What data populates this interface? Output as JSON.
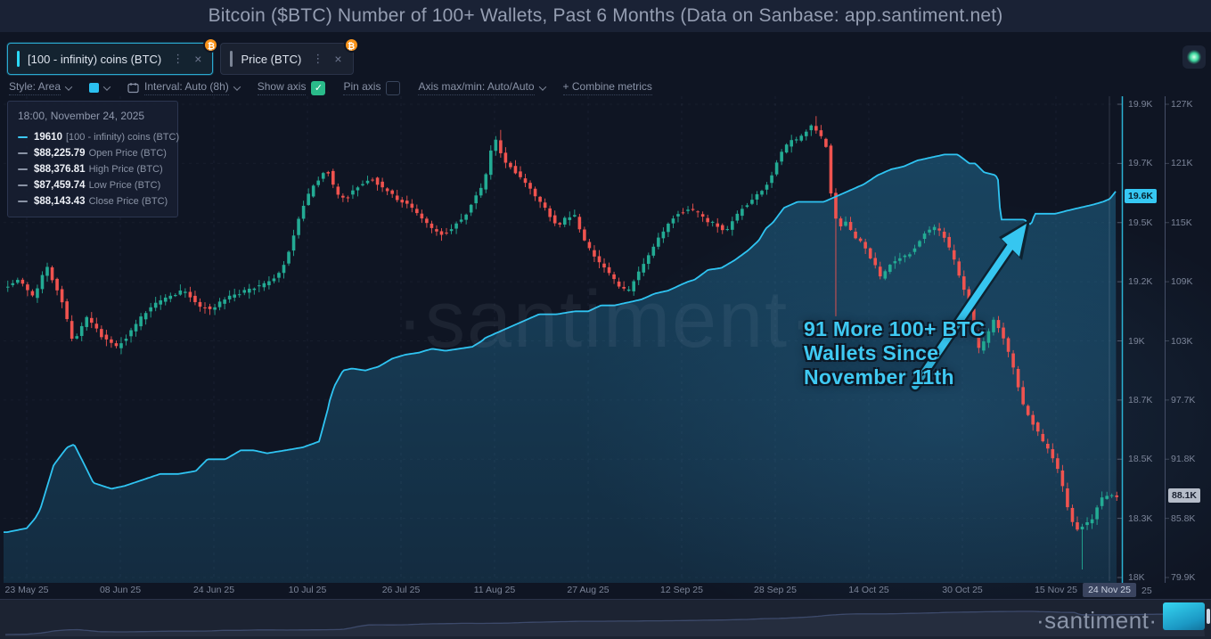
{
  "header": {
    "title": "Bitcoin ($BTC) Number of 100+ Wallets, Past 6 Months (Data on Sanbase: app.santiment.net)"
  },
  "metric_chips": [
    {
      "label": "[100 - infinity) coins (BTC)",
      "active": true,
      "badge": "₿",
      "accent": "#2bd9f7"
    },
    {
      "label": "Price (BTC)",
      "active": false,
      "badge": "₿",
      "accent": "#7c8596"
    }
  ],
  "toolbar": {
    "style_label": "Style: Area",
    "swatch_color": "#2bc0f0",
    "interval_label": "Interval: Auto (8h)",
    "show_axis_label": "Show axis",
    "show_axis_checked": true,
    "check_glyph": "✓",
    "pin_axis_label": "Pin axis",
    "pin_axis_checked": false,
    "axis_maxmin_label": "Axis max/min: Auto/Auto",
    "combine_label": "+  Combine metrics"
  },
  "tooltip": {
    "timestamp": "18:00, November 24, 2025",
    "rows": [
      {
        "color": "#3cc8f5",
        "value": "19610",
        "label": "[100 - infinity) coins (BTC)"
      },
      {
        "color": "#8a93a5",
        "value": "$88,225.79",
        "label": "Open Price (BTC)"
      },
      {
        "color": "#8a93a5",
        "value": "$88,376.81",
        "label": "High Price (BTC)"
      },
      {
        "color": "#8a93a5",
        "value": "$87,459.74",
        "label": "Low Price (BTC)"
      },
      {
        "color": "#8a93a5",
        "value": "$88,143.43",
        "label": "Close Price (BTC)"
      }
    ]
  },
  "annotation": {
    "lines": [
      "91 More 100+ BTC",
      "Wallets Since",
      "November 11th"
    ],
    "color": "#3fc9f2",
    "arrow_color": "#36c6f0"
  },
  "watermark": {
    "text": "·santiment·"
  },
  "logo": {
    "text": "·santiment·"
  },
  "chart_data": {
    "type": "mixed",
    "title": "Bitcoin ($BTC) Number of 100+ Wallets, Past 6 Months",
    "x_axis": {
      "labels": [
        "23 May 25",
        "08 Jun 25",
        "24 Jun 25",
        "10 Jul 25",
        "26 Jul 25",
        "11 Aug 25",
        "27 Aug 25",
        "12 Sep 25",
        "28 Sep 25",
        "14 Oct 25",
        "30 Oct 25",
        "15 Nov 25"
      ],
      "days_per_tick": 16,
      "crosshair_label": "24 Nov 25",
      "extra_label": "25",
      "grid": true
    },
    "y_axis_wallets": {
      "labels": [
        "19.9K",
        "19.7K",
        "19.5K",
        "19.2K",
        "19K",
        "18.7K",
        "18.5K",
        "18.3K",
        "18K"
      ],
      "values": [
        19.9,
        19.7,
        19.5,
        19.2,
        19.0,
        18.7,
        18.5,
        18.3,
        18.0
      ],
      "current_badge": "19.6K",
      "current_value": 19.61,
      "axis_color": "#2bb3d4"
    },
    "y_axis_price": {
      "labels": [
        "127K",
        "121K",
        "115K",
        "109K",
        "103K",
        "97.7K",
        "91.8K",
        "85.8K",
        "79.9K"
      ],
      "values": [
        127,
        121,
        115,
        109,
        103,
        97.7,
        91.8,
        85.8,
        79.9
      ],
      "current_badge": "88.1K",
      "current_value": 88.1,
      "axis_color": "#454f68"
    },
    "series": [
      {
        "name": "[100 - infinity) coins (BTC)",
        "type": "area",
        "axis": "wallets",
        "line_color": "#2fc4f2",
        "fill_color": "42,160,215",
        "points": [
          [
            -3.4,
            18.23
          ],
          [
            0,
            18.25
          ],
          [
            2.3,
            18.33
          ],
          [
            4.6,
            18.48
          ],
          [
            6.9,
            18.54
          ],
          [
            8.1,
            18.55
          ],
          [
            9.9,
            18.48
          ],
          [
            11.4,
            18.42
          ],
          [
            14.5,
            18.4
          ],
          [
            16.8,
            18.41
          ],
          [
            19.8,
            18.43
          ],
          [
            22.8,
            18.45
          ],
          [
            25.9,
            18.45
          ],
          [
            28.9,
            18.46
          ],
          [
            30.9,
            18.5
          ],
          [
            34,
            18.5
          ],
          [
            36.6,
            18.53
          ],
          [
            38.8,
            18.53
          ],
          [
            41.1,
            18.52
          ],
          [
            44.2,
            18.53
          ],
          [
            47.2,
            18.54
          ],
          [
            50,
            18.56
          ],
          [
            51.5,
            18.67
          ],
          [
            52.6,
            18.77
          ],
          [
            54.1,
            18.85
          ],
          [
            55.6,
            18.86
          ],
          [
            57.9,
            18.85
          ],
          [
            60.2,
            18.87
          ],
          [
            62.5,
            18.91
          ],
          [
            64.7,
            18.93
          ],
          [
            67,
            18.94
          ],
          [
            69.3,
            18.96
          ],
          [
            71.6,
            18.95
          ],
          [
            73.9,
            18.96
          ],
          [
            76.2,
            18.97
          ],
          [
            78.4,
            19.01
          ],
          [
            80.7,
            19.03
          ],
          [
            83,
            19.05
          ],
          [
            85.3,
            19.07
          ],
          [
            87.6,
            19.09
          ],
          [
            90.6,
            19.09
          ],
          [
            93.7,
            19.1
          ],
          [
            96,
            19.1
          ],
          [
            98.2,
            19.12
          ],
          [
            100.5,
            19.12
          ],
          [
            102.8,
            19.13
          ],
          [
            105.1,
            19.14
          ],
          [
            107.4,
            19.16
          ],
          [
            109.7,
            19.17
          ],
          [
            111.9,
            19.19
          ],
          [
            114.2,
            19.21
          ],
          [
            116.5,
            19.26
          ],
          [
            118.8,
            19.27
          ],
          [
            121.1,
            19.31
          ],
          [
            123.4,
            19.36
          ],
          [
            125.2,
            19.41
          ],
          [
            126.4,
            19.47
          ],
          [
            127.6,
            19.5
          ],
          [
            129.5,
            19.55
          ],
          [
            131.8,
            19.57
          ],
          [
            134,
            19.57
          ],
          [
            136.3,
            19.57
          ],
          [
            138.6,
            19.59
          ],
          [
            140.9,
            19.61
          ],
          [
            143.2,
            19.63
          ],
          [
            145.5,
            19.66
          ],
          [
            147.8,
            19.68
          ],
          [
            150,
            19.69
          ],
          [
            152.3,
            19.71
          ],
          [
            154.6,
            19.72
          ],
          [
            156.9,
            19.73
          ],
          [
            159.2,
            19.73
          ],
          [
            161.2,
            19.7
          ],
          [
            162.2,
            19.7
          ],
          [
            163.7,
            19.67
          ],
          [
            165.7,
            19.66
          ],
          [
            166.2,
            19.64
          ],
          [
            166.5,
            19.51
          ],
          [
            167.6,
            19.51
          ],
          [
            169.1,
            19.51
          ],
          [
            170.6,
            19.51
          ],
          [
            171.7,
            19.49
          ],
          [
            172.4,
            19.53
          ],
          [
            173.6,
            19.53
          ],
          [
            175.9,
            19.53
          ],
          [
            177.9,
            19.54
          ],
          [
            180,
            19.55
          ],
          [
            182.2,
            19.56
          ],
          [
            184,
            19.57
          ],
          [
            185.2,
            19.58
          ],
          [
            186.4,
            19.61
          ]
        ]
      },
      {
        "name": "Price (BTC)",
        "type": "candlestick",
        "axis": "price",
        "up_color": "#23ab94",
        "down_color": "#f0534f",
        "close_path": [
          [
            -3,
            108.6
          ],
          [
            -0.8,
            109.2
          ],
          [
            1.5,
            107.4
          ],
          [
            3.8,
            110.5
          ],
          [
            6.1,
            107.7
          ],
          [
            8.4,
            102.8
          ],
          [
            10.7,
            105.3
          ],
          [
            12.9,
            103.7
          ],
          [
            15.5,
            102.4
          ],
          [
            18,
            103.7
          ],
          [
            20.3,
            105.6
          ],
          [
            22.5,
            106.8
          ],
          [
            25.1,
            107.7
          ],
          [
            27.4,
            108.1
          ],
          [
            29.7,
            106.6
          ],
          [
            32,
            106.2
          ],
          [
            34.3,
            107.2
          ],
          [
            36.6,
            107.8
          ],
          [
            38.8,
            108.3
          ],
          [
            41.1,
            108.7
          ],
          [
            43,
            109.4
          ],
          [
            44.5,
            110.8
          ],
          [
            46,
            113.6
          ],
          [
            47.5,
            116.3
          ],
          [
            49,
            118.3
          ],
          [
            50.6,
            119.6
          ],
          [
            51.8,
            120.4
          ],
          [
            53.3,
            118
          ],
          [
            54.8,
            117.3
          ],
          [
            56.4,
            118.5
          ],
          [
            57.9,
            119
          ],
          [
            59.4,
            119.5
          ],
          [
            61.2,
            118.6
          ],
          [
            63.1,
            117.7
          ],
          [
            64.9,
            117
          ],
          [
            66.7,
            116.3
          ],
          [
            68.6,
            115
          ],
          [
            70.4,
            114.1
          ],
          [
            71.9,
            113.8
          ],
          [
            73.4,
            114.7
          ],
          [
            75.2,
            115.5
          ],
          [
            77.1,
            117.7
          ],
          [
            78.6,
            118.9
          ],
          [
            79.8,
            122.3
          ],
          [
            80.7,
            123.4
          ],
          [
            81.9,
            121.2
          ],
          [
            83.5,
            120.4
          ],
          [
            85,
            119.5
          ],
          [
            86.5,
            118.6
          ],
          [
            88,
            117.2
          ],
          [
            89.6,
            115.9
          ],
          [
            91.1,
            114.6
          ],
          [
            92.6,
            115.5
          ],
          [
            94.1,
            115.7
          ],
          [
            95.7,
            113.3
          ],
          [
            97.2,
            111.8
          ],
          [
            98.7,
            110.6
          ],
          [
            100.2,
            109.7
          ],
          [
            101.8,
            108.4
          ],
          [
            103.3,
            108.1
          ],
          [
            104.8,
            109.7
          ],
          [
            106.3,
            111
          ],
          [
            107.8,
            112.8
          ],
          [
            109.4,
            114.1
          ],
          [
            110.9,
            115.5
          ],
          [
            112.4,
            116.1
          ],
          [
            113.9,
            116.4
          ],
          [
            115.5,
            115.8
          ],
          [
            117,
            115.1
          ],
          [
            118.5,
            114.7
          ],
          [
            120,
            114.2
          ],
          [
            121.6,
            115.6
          ],
          [
            123.1,
            116.7
          ],
          [
            124.6,
            117.3
          ],
          [
            126.1,
            118.2
          ],
          [
            127.6,
            119.5
          ],
          [
            129.2,
            121.8
          ],
          [
            130.7,
            123.1
          ],
          [
            132.2,
            123.5
          ],
          [
            133.7,
            124.2
          ],
          [
            134.6,
            124.7
          ],
          [
            135.9,
            124
          ],
          [
            137.1,
            122.7
          ],
          [
            138.3,
            116.1
          ],
          [
            139.2,
            114.5
          ],
          [
            140.4,
            115
          ],
          [
            141.6,
            113.8
          ],
          [
            142.9,
            113.1
          ],
          [
            144.1,
            112
          ],
          [
            145.3,
            110.8
          ],
          [
            146.5,
            109.3
          ],
          [
            147.8,
            110.6
          ],
          [
            149,
            111.1
          ],
          [
            150.2,
            111.6
          ],
          [
            151.4,
            111.9
          ],
          [
            152.6,
            112.8
          ],
          [
            153.8,
            113.9
          ],
          [
            155.1,
            114.5
          ],
          [
            156.3,
            114.3
          ],
          [
            157.5,
            113.2
          ],
          [
            158.7,
            111.7
          ],
          [
            159.9,
            109.5
          ],
          [
            161.2,
            107.4
          ],
          [
            162.1,
            104.7
          ],
          [
            163,
            102.2
          ],
          [
            163.9,
            102.6
          ],
          [
            164.8,
            103.7
          ],
          [
            165.7,
            105.3
          ],
          [
            166.6,
            104.4
          ],
          [
            167.6,
            103.2
          ],
          [
            168.5,
            101.6
          ],
          [
            169.4,
            100
          ],
          [
            170.3,
            98.1
          ],
          [
            171.2,
            96.6
          ],
          [
            172.1,
            95.9
          ],
          [
            173,
            94.8
          ],
          [
            173.9,
            93.7
          ],
          [
            174.9,
            92.8
          ],
          [
            175.8,
            92
          ],
          [
            176.7,
            90.8
          ],
          [
            177.6,
            88.8
          ],
          [
            178.5,
            86.6
          ],
          [
            179.4,
            85.2
          ],
          [
            180.3,
            84.5
          ],
          [
            181.3,
            85.5
          ],
          [
            182.2,
            85
          ],
          [
            183.1,
            86.6
          ],
          [
            184,
            87.7
          ],
          [
            184.9,
            88.1
          ]
        ],
        "wick_overrides": [
          {
            "d": 80.7,
            "high": 124.4
          },
          {
            "d": 134.6,
            "high": 125.8
          },
          {
            "d": 138.3,
            "low": 105.5
          },
          {
            "d": 180.3,
            "low": 80.7
          }
        ]
      }
    ]
  }
}
